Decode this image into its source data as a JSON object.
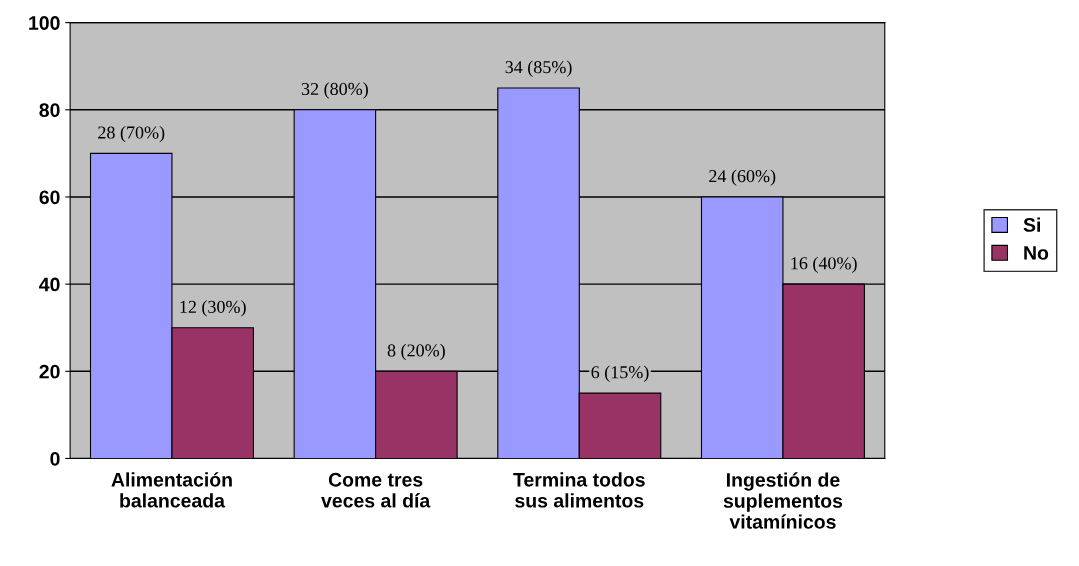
{
  "chart_data": {
    "type": "bar",
    "categories": [
      "Alimentación\nbalanceada",
      "Come tres\nveces al día",
      "Termina todos\nsus alimentos",
      "Ingestión de\nsuplementos\nvitamínicos"
    ],
    "series": [
      {
        "name": "Si",
        "color": "#9999ff",
        "values": [
          70,
          80,
          85,
          60
        ],
        "value_labels": [
          "28 (70%)",
          "32 (80%)",
          "34 (85%)",
          "24 (60%)"
        ]
      },
      {
        "name": "No",
        "color": "#993366",
        "values": [
          30,
          20,
          15,
          40
        ],
        "value_labels": [
          "12 (30%)",
          "8 (20%)",
          "6 (15%)",
          "16 (40%)"
        ]
      }
    ],
    "ylim": [
      0,
      100
    ],
    "yticks": [
      0,
      20,
      40,
      60,
      80,
      100
    ],
    "grid": "y",
    "legend": "right"
  }
}
